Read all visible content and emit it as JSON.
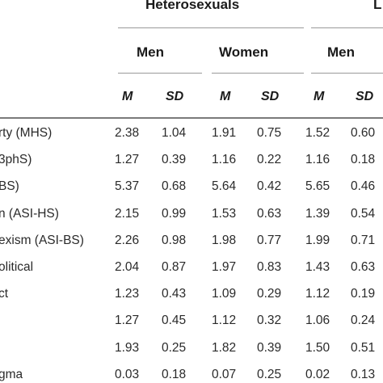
{
  "table": {
    "group_headers": [
      "Heterosexuals",
      "L"
    ],
    "sub_headers": [
      "Men",
      "Women",
      "Men"
    ],
    "stat_headers": [
      "M",
      "SD",
      "M",
      "SD",
      "M",
      "SD"
    ],
    "rows": [
      {
        "label": "rty (MHS)",
        "values": [
          "2.38",
          "1.04",
          "1.91",
          "0.75",
          "1.52",
          "0.60"
        ]
      },
      {
        "label": "3phS)",
        "values": [
          "1.27",
          "0.39",
          "1.16",
          "0.22",
          "1.16",
          "0.18"
        ]
      },
      {
        "label": "BS)",
        "values": [
          "5.37",
          "0.68",
          "5.64",
          "0.42",
          "5.65",
          "0.46"
        ]
      },
      {
        "label": "n (ASI-HS)",
        "values": [
          "2.15",
          "0.99",
          "1.53",
          "0.63",
          "1.39",
          "0.54"
        ]
      },
      {
        "label": "exism (ASI-BS)",
        "values": [
          "2.26",
          "0.98",
          "1.98",
          "0.77",
          "1.99",
          "0.71"
        ]
      },
      {
        "label": "olitical",
        "values": [
          "2.04",
          "0.87",
          "1.97",
          "0.83",
          "1.43",
          "0.63"
        ]
      },
      {
        "label": "ct",
        "values": [
          "1.23",
          "0.43",
          "1.09",
          "0.29",
          "1.12",
          "0.19"
        ]
      },
      {
        "label": "",
        "values": [
          "1.27",
          "0.45",
          "1.12",
          "0.32",
          "1.06",
          "0.24"
        ]
      },
      {
        "label": "",
        "values": [
          "1.93",
          "0.25",
          "1.82",
          "0.39",
          "1.50",
          "0.51"
        ]
      },
      {
        "label": "gma",
        "values": [
          "0.03",
          "0.18",
          "0.07",
          "0.25",
          "0.02",
          "0.13"
        ]
      }
    ]
  }
}
